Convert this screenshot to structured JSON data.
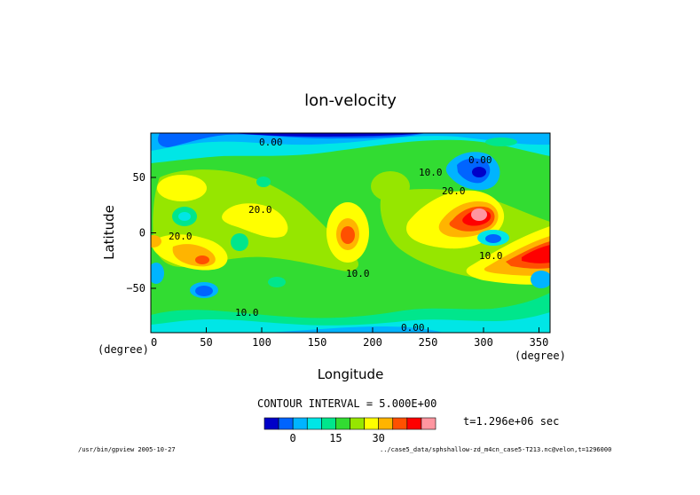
{
  "chart_data": {
    "type": "heatmap",
    "title": "lon-velocity",
    "xlabel": "Longitude",
    "ylabel": "Latitude",
    "x_unit": "(degree)",
    "y_unit": "(degree)",
    "xlim": [
      0,
      360
    ],
    "ylim": [
      -90,
      90
    ],
    "x_ticks": [
      "0",
      "50",
      "100",
      "150",
      "200",
      "250",
      "300",
      "350"
    ],
    "y_ticks": [
      "50",
      "0",
      "−50"
    ],
    "contour_interval_label": "CONTOUR INTERVAL = 5.000E+00",
    "time_label": "t=1.296e+06 sec",
    "colorbar": {
      "colors": [
        "#0000c8",
        "#0064ff",
        "#00b4ff",
        "#00e6e6",
        "#00e68c",
        "#32dc32",
        "#96e600",
        "#ffff00",
        "#ffb400",
        "#ff5000",
        "#ff0000",
        "#ff96a0"
      ],
      "tick_labels": [
        "0",
        "15",
        "30"
      ],
      "range": [
        -10,
        50
      ]
    },
    "contour_labels": [
      "0.00",
      "0.00",
      "10.0",
      "20.0",
      "20.0",
      "20.0",
      "10.0",
      "10.0",
      "10.0",
      "0.00",
      "0.00"
    ],
    "footer_left": "/usr/bin/gpview  2005-10-27",
    "footer_right": "../case5_data/sphshallow-zd_m4cn_case5-T213.nc@velon,t=1296000"
  }
}
